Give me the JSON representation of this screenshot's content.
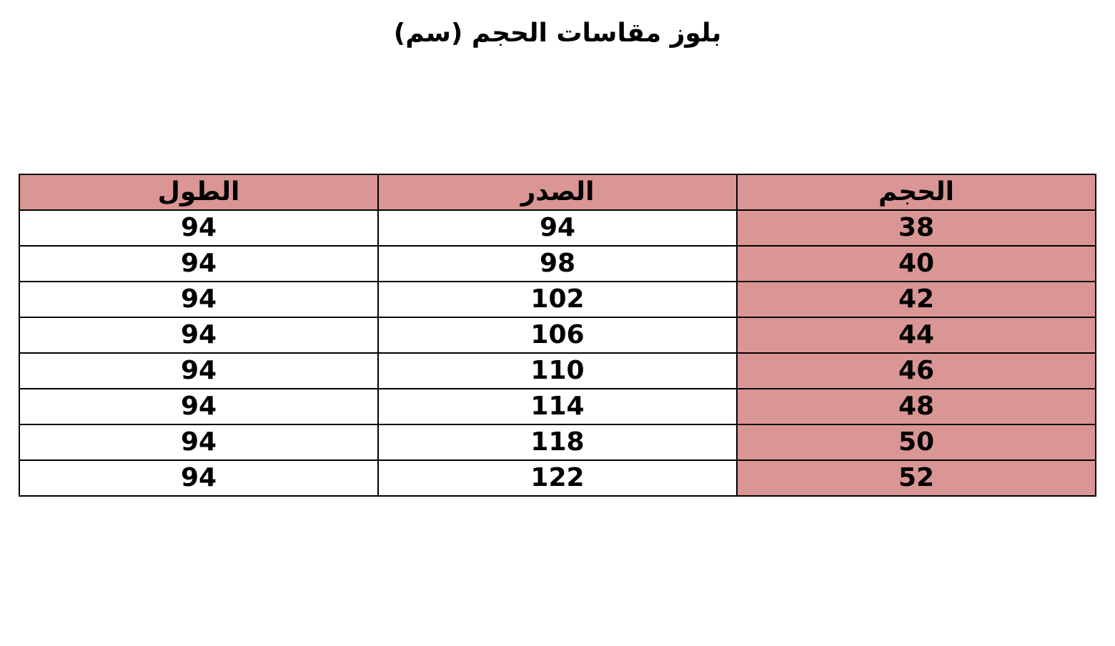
{
  "title": "بلوز مقاسات الحجم (سم)",
  "header_color": "#da9694",
  "columns": [
    "الحجم",
    "الصدر",
    "الطول"
  ],
  "rows": [
    [
      "38",
      "94",
      "94"
    ],
    [
      "40",
      "98",
      "94"
    ],
    [
      "42",
      "102",
      "94"
    ],
    [
      "44",
      "106",
      "94"
    ],
    [
      "46",
      "110",
      "94"
    ],
    [
      "48",
      "114",
      "94"
    ],
    [
      "50",
      "118",
      "94"
    ],
    [
      "52",
      "122",
      "94"
    ]
  ]
}
